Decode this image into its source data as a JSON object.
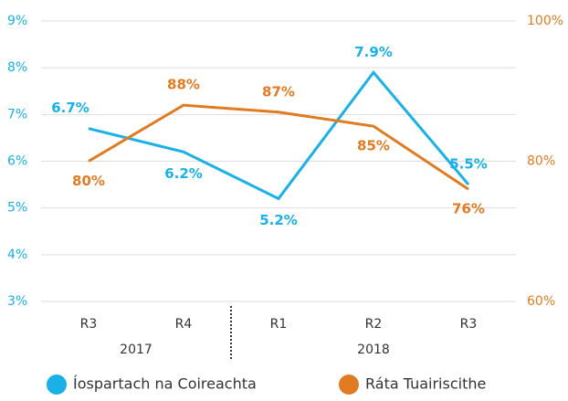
{
  "chart_data": {
    "type": "line",
    "categories": [
      "R3",
      "R4",
      "R1",
      "R2",
      "R3"
    ],
    "x_groups": [
      {
        "label": "2017",
        "span": 2
      },
      {
        "label": "2018",
        "span": 3
      }
    ],
    "series": [
      {
        "name": "Íospartach na Coireachta",
        "color": "#1ab0e8",
        "axis": "y",
        "values": [
          6.7,
          6.2,
          5.2,
          7.9,
          5.5
        ],
        "value_labels": [
          "6.7%",
          "6.2%",
          "5.2%",
          "7.9%",
          "5.5%"
        ]
      },
      {
        "name": "Ráta Tuairiscithe",
        "color": "#e07b22",
        "axis": "y2",
        "values": [
          80,
          88,
          87,
          85,
          76
        ],
        "value_labels": [
          "80%",
          "88%",
          "87%",
          "85%",
          "76%"
        ]
      }
    ],
    "ylim": [
      3,
      9
    ],
    "yticks": [
      {
        "value": 3,
        "label": "3%"
      },
      {
        "value": 4,
        "label": "4%"
      },
      {
        "value": 5,
        "label": "5%"
      },
      {
        "value": 6,
        "label": "6%"
      },
      {
        "value": 7,
        "label": "7%"
      },
      {
        "value": 8,
        "label": "8%"
      },
      {
        "value": 9,
        "label": "9%"
      }
    ],
    "y2lim": [
      60,
      100
    ],
    "y2ticks": [
      {
        "value": 60,
        "label": "60%"
      },
      {
        "value": 80,
        "label": "80%"
      },
      {
        "value": 100,
        "label": "100%"
      }
    ],
    "grid": true
  }
}
